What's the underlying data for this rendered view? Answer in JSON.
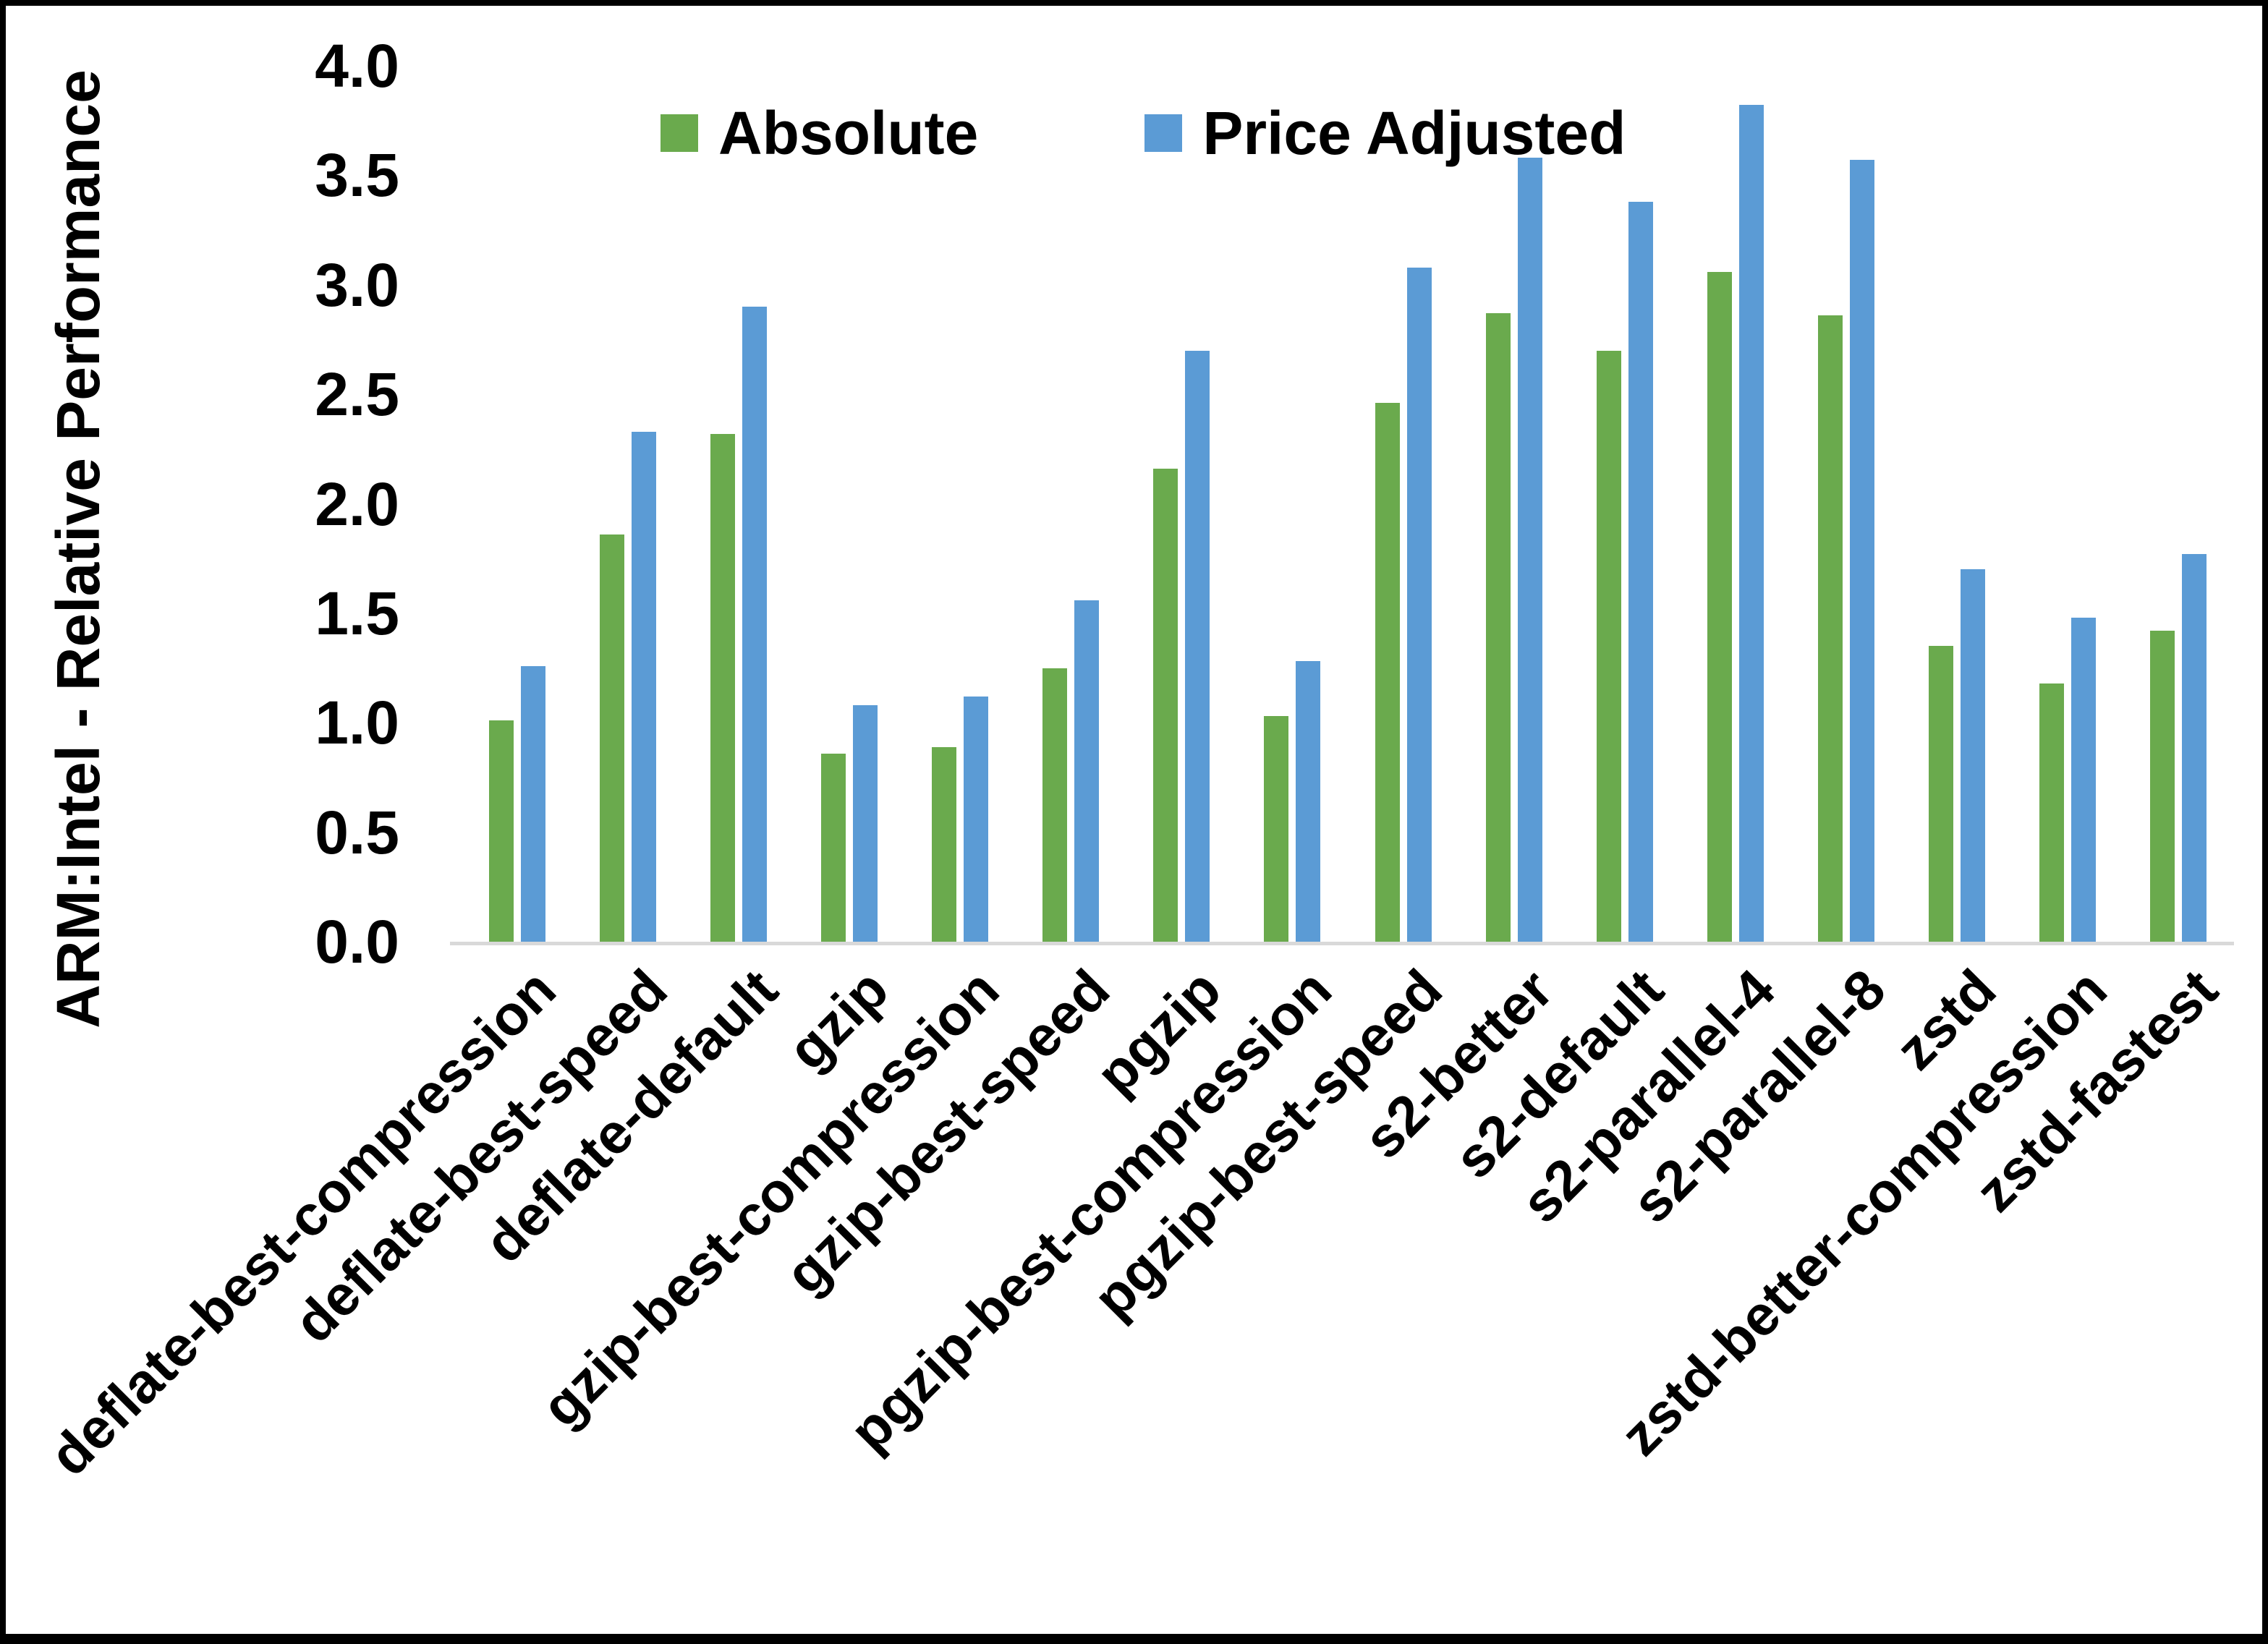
{
  "chart_data": {
    "type": "bar",
    "title": "",
    "xlabel": "",
    "ylabel": "ARM:Intel - Relative Performance",
    "ylim": [
      0,
      4
    ],
    "ytick_step": 0.5,
    "yticks": [
      "0.0",
      "0.5",
      "1.0",
      "1.5",
      "2.0",
      "2.5",
      "3.0",
      "3.5",
      "4.0"
    ],
    "grid": "off",
    "legend_position": "top-center",
    "axis_line_color": "#d9d9d9",
    "text_color": "#000000",
    "background_color": "#ffffff",
    "categories": [
      "deflate-best-compression",
      "deflate-best-speed",
      "deflate-default",
      "gzip",
      "gzip-best-compression",
      "gzip-best-speed",
      "pgzip",
      "pgzip-best-compression",
      "pgzip-best-speed",
      "s2-better",
      "s2-default",
      "s2-parallel-4",
      "s2-parallel-8",
      "zstd",
      "zstd-better-compression",
      "zstd-fastest"
    ],
    "series": [
      {
        "name": "Absolute",
        "color": "#6aaa4d",
        "values": [
          1.01,
          1.86,
          2.32,
          0.86,
          0.89,
          1.25,
          2.16,
          1.03,
          2.46,
          2.87,
          2.7,
          3.06,
          2.86,
          1.35,
          1.18,
          1.42
        ]
      },
      {
        "name": "Price Adjusted",
        "color": "#5b9bd5",
        "values": [
          1.26,
          2.33,
          2.9,
          1.08,
          1.12,
          1.56,
          2.7,
          1.28,
          3.08,
          3.58,
          3.38,
          3.82,
          3.57,
          1.7,
          1.48,
          1.77
        ]
      }
    ]
  }
}
